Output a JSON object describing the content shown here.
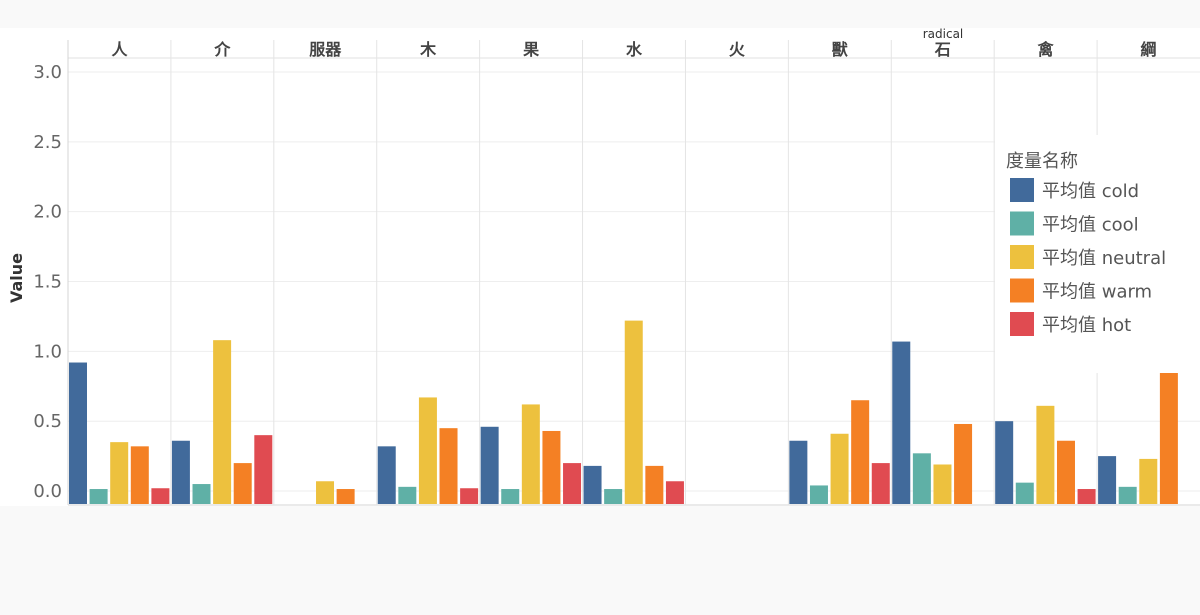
{
  "chart_data": {
    "type": "bar",
    "header_title": "radical",
    "ylabel": "Value",
    "ylim": [
      -0.1,
      3.1
    ],
    "yticks": [
      0.0,
      0.5,
      1.0,
      1.5,
      2.0,
      2.5,
      3.0
    ],
    "ytick_labels": [
      "0.0",
      "0.5",
      "1.0",
      "1.5",
      "2.0",
      "2.5",
      "3.0"
    ],
    "grid": true,
    "legend_placement": "right",
    "legend_title": "度量名称",
    "categories": [
      "人",
      "介",
      "服器",
      "木",
      "果",
      "水",
      "火",
      "獸",
      "石",
      "禽",
      "綱"
    ],
    "series": [
      {
        "name": "平均值 cold",
        "color": "#416a9b",
        "values": [
          0.92,
          0.36,
          null,
          0.32,
          0.46,
          0.18,
          null,
          0.36,
          1.07,
          0.5,
          0.25
        ]
      },
      {
        "name": "平均值 cool",
        "color": "#5fb0a6",
        "values": [
          0.0,
          0.05,
          null,
          0.03,
          0.01,
          0.01,
          null,
          0.04,
          0.27,
          0.06,
          0.03
        ]
      },
      {
        "name": "平均值 neutral",
        "color": "#edc13e",
        "values": [
          0.35,
          1.08,
          0.07,
          0.67,
          0.62,
          1.22,
          null,
          0.41,
          0.19,
          0.61,
          0.23
        ]
      },
      {
        "name": "平均值 warm",
        "color": "#f48024",
        "values": [
          0.32,
          0.2,
          0.0,
          0.45,
          0.43,
          0.18,
          null,
          0.65,
          0.48,
          0.36,
          0.86
        ]
      },
      {
        "name": "平均值 hot",
        "color": "#e04b51",
        "values": [
          0.02,
          0.4,
          null,
          0.02,
          0.2,
          0.07,
          null,
          0.2,
          null,
          0.01,
          null
        ]
      }
    ]
  }
}
